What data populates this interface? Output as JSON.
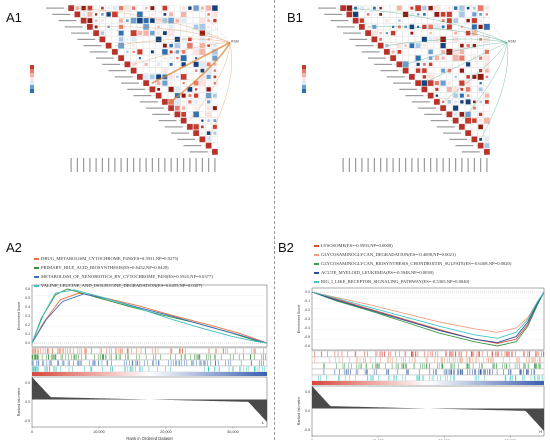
{
  "labels": {
    "a1": "A1",
    "b1": "B1",
    "a2": "A2",
    "b2": "B2"
  },
  "chart_data": [
    {
      "type": "heatmap",
      "panel": "A1",
      "note_label": "RSM",
      "shape": "triangular-correlation",
      "n_rows": 24
    },
    {
      "type": "heatmap",
      "panel": "B1",
      "note_label": "RSM",
      "shape": "triangular-correlation",
      "n_rows": 24
    },
    {
      "type": "line",
      "panel": "A2",
      "xlabel": "Rank in Ordered Dataset",
      "ylabel_top": "Enrichment Score",
      "ylabel_bottom": "Ranked list metric",
      "xticks": [
        "0",
        "10,000",
        "20,000",
        "30,000"
      ],
      "yticks_top": [
        "0.6",
        "0.5",
        "0.4",
        "0.3",
        "0.2",
        "0.1",
        "0.0"
      ],
      "yticks_bottom": [
        "0.5",
        "0.0",
        "-0.5"
      ],
      "corner_labels": [
        "H",
        "L"
      ],
      "series": [
        {
          "name": "DRUG_METABOLISM_CYTOCHROME_P450(ES=0.5931,NP=0.0275)",
          "color": "#e8734a",
          "x": [
            0,
            0.05,
            0.12,
            0.2,
            0.3,
            0.45,
            0.6,
            0.75,
            0.88,
            0.96,
            1
          ],
          "y": [
            0,
            0.25,
            0.52,
            0.6,
            0.55,
            0.45,
            0.33,
            0.22,
            0.12,
            0.04,
            0
          ]
        },
        {
          "name": "PRIMARY_BILE_ACID_BIOSYNTHESIS(ES=0.6452,NP=0.0420)",
          "color": "#3a8f3a",
          "x": [
            0,
            0.04,
            0.1,
            0.15,
            0.25,
            0.4,
            0.55,
            0.7,
            0.85,
            0.95,
            1
          ],
          "y": [
            0,
            0.3,
            0.58,
            0.65,
            0.57,
            0.45,
            0.34,
            0.24,
            0.12,
            0.03,
            0
          ]
        },
        {
          "name": "METABOLISM_OF_XENOBIOTICS_BY_CYTOCHROME_P450(ES=0.5925,NP=0.0377)",
          "color": "#3b6fb5",
          "x": [
            0,
            0.06,
            0.13,
            0.22,
            0.32,
            0.45,
            0.6,
            0.75,
            0.88,
            0.96,
            1
          ],
          "y": [
            0,
            0.28,
            0.5,
            0.59,
            0.53,
            0.43,
            0.32,
            0.2,
            0.1,
            0.03,
            0
          ]
        },
        {
          "name": "VALINE_LEUCINE_AND_ISOLEUCINE_DEGRADATION(ES=0.6455,NP=0.0307)",
          "color": "#3cc0c0",
          "x": [
            0,
            0.05,
            0.1,
            0.18,
            0.3,
            0.45,
            0.6,
            0.72,
            0.85,
            0.95,
            1
          ],
          "y": [
            0,
            0.35,
            0.6,
            0.64,
            0.55,
            0.42,
            0.28,
            0.18,
            0.08,
            0.02,
            0
          ]
        }
      ]
    },
    {
      "type": "line",
      "panel": "B2",
      "xlabel": "Rank in Ordered Dataset",
      "ylabel_top": "Enrichment Score",
      "ylabel_bottom": "Ranked list metric",
      "xticks": [
        "0",
        "10,000",
        "20,000",
        "30,000"
      ],
      "yticks_top": [
        "0.0",
        "-0.1",
        "-0.2",
        "-0.3",
        "-0.4",
        "-0.5",
        "-0.6"
      ],
      "yticks_bottom": [
        "0.5",
        "0.0",
        "-0.5"
      ],
      "corner_labels": [
        "L",
        "H"
      ],
      "series": [
        {
          "name": "LYSOSOME(ES=-0.5993,NP=0.0000)",
          "color": "#e04a3a",
          "x": [
            0,
            0.1,
            0.25,
            0.4,
            0.55,
            0.7,
            0.8,
            0.88,
            0.93,
            0.97,
            1
          ],
          "y": [
            0,
            -0.08,
            -0.2,
            -0.32,
            -0.44,
            -0.55,
            -0.6,
            -0.55,
            -0.38,
            -0.15,
            0
          ]
        },
        {
          "name": "GLYCOSAMINOGLYCAN_DEGRADATION(ES=-0.4698,NP=0.0021)",
          "color": "#f0a080",
          "x": [
            0,
            0.1,
            0.25,
            0.4,
            0.55,
            0.7,
            0.8,
            0.88,
            0.93,
            0.97,
            1
          ],
          "y": [
            0,
            -0.06,
            -0.15,
            -0.25,
            -0.35,
            -0.43,
            -0.47,
            -0.42,
            -0.3,
            -0.12,
            0
          ]
        },
        {
          "name": "GLYCOSAMINOGLYCAN_BIOSYNTHESIS_CHONDROITIN_SULFATE(ES=-0.6308,NP=0.0020)",
          "color": "#3a9a4a",
          "x": [
            0,
            0.1,
            0.25,
            0.4,
            0.55,
            0.7,
            0.8,
            0.88,
            0.93,
            0.97,
            1
          ],
          "y": [
            0,
            -0.1,
            -0.22,
            -0.35,
            -0.48,
            -0.58,
            -0.63,
            -0.58,
            -0.4,
            -0.16,
            0
          ]
        },
        {
          "name": "ACUTE_MYELOID_LEUKEMIA(ES=-0.5948,NP=0.0039)",
          "color": "#2b4f9a",
          "x": [
            0,
            0.1,
            0.25,
            0.4,
            0.55,
            0.7,
            0.8,
            0.88,
            0.93,
            0.97,
            1
          ],
          "y": [
            0,
            -0.09,
            -0.21,
            -0.33,
            -0.45,
            -0.55,
            -0.59,
            -0.52,
            -0.35,
            -0.14,
            0
          ]
        },
        {
          "name": "RIG_I_LIKE_RECEPTOR_SIGNALING_PATHWAY(ES=-0.5365,NP=0.0040)",
          "color": "#40c8c8",
          "x": [
            0,
            0.1,
            0.25,
            0.4,
            0.55,
            0.7,
            0.8,
            0.88,
            0.93,
            0.97,
            1
          ],
          "y": [
            0,
            -0.07,
            -0.18,
            -0.29,
            -0.4,
            -0.5,
            -0.54,
            -0.47,
            -0.32,
            -0.12,
            0
          ]
        }
      ]
    }
  ]
}
